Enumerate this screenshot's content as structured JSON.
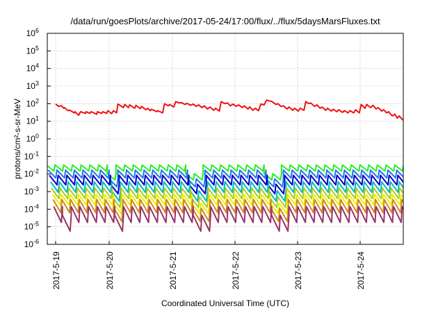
{
  "chart_data": {
    "type": "line",
    "title": "/data/run/goesPlots/archive/2017-05-24/17:00/flux/../flux/5daysMarsFluxes.txt",
    "xlabel": "Coordinated Universal Time (UTC)",
    "ylabel": "protons/cm²-s-sr-MeV",
    "y_scale": "log",
    "ylim": [
      1e-06,
      1000000.0
    ],
    "y_ticks": [
      {
        "value": 1e-06,
        "base": "10",
        "exp": "-6"
      },
      {
        "value": 1e-05,
        "base": "10",
        "exp": "-5"
      },
      {
        "value": 0.0001,
        "base": "10",
        "exp": "-4"
      },
      {
        "value": 0.001,
        "base": "10",
        "exp": "-3"
      },
      {
        "value": 0.01,
        "base": "10",
        "exp": "-2"
      },
      {
        "value": 0.1,
        "base": "10",
        "exp": "-1"
      },
      {
        "value": 1,
        "base": "10",
        "exp": "0"
      },
      {
        "value": 10,
        "base": "10",
        "exp": "1"
      },
      {
        "value": 100,
        "base": "10",
        "exp": "2"
      },
      {
        "value": 1000,
        "base": "10",
        "exp": "3"
      },
      {
        "value": 10000,
        "base": "10",
        "exp": "4"
      },
      {
        "value": 100000,
        "base": "10",
        "exp": "5"
      },
      {
        "value": 1000000,
        "base": "10",
        "exp": "6"
      }
    ],
    "x_ticks": [
      "2017-5-19",
      "2017-5-20",
      "2017-5-21",
      "2017-5-22",
      "2017-5-23",
      "2017-5-24"
    ],
    "x_range_days": [
      0,
      5.7
    ],
    "grid": true,
    "legend": "none",
    "series": [
      {
        "color": "#ee1111",
        "x": [
          0.0,
          0.05,
          0.09,
          0.13,
          0.14,
          0.2,
          0.23,
          0.3,
          0.31,
          0.37,
          0.4,
          0.48,
          0.49,
          0.55,
          0.57,
          0.66,
          0.67,
          0.74,
          0.76,
          0.82,
          0.84,
          0.9,
          0.93,
          0.98,
          1.0,
          1.09,
          1.11,
          1.17,
          1.19,
          1.27,
          1.29,
          1.36,
          1.38,
          1.45,
          1.48,
          1.52,
          1.54,
          1.63,
          1.64,
          1.72,
          1.75,
          1.81,
          1.83,
          1.9,
          1.93,
          1.99,
          2.02,
          2.08,
          2.11,
          2.17,
          2.21,
          2.26,
          2.3,
          2.35,
          2.39,
          2.44,
          2.48,
          2.54,
          2.57,
          2.63,
          2.66,
          2.72,
          2.76,
          2.81,
          2.85,
          2.9,
          2.94,
          3.0,
          3.03,
          3.09,
          3.12,
          3.17,
          3.21,
          3.26,
          3.3,
          3.35,
          3.39,
          3.44,
          3.48,
          3.54,
          3.57,
          3.62,
          3.66,
          3.72,
          3.75,
          3.81,
          3.84,
          3.9,
          3.93,
          3.99,
          4.02,
          4.07,
          4.1,
          4.16,
          4.2,
          4.25,
          4.28,
          4.34,
          4.37,
          4.43,
          4.46,
          4.52,
          4.55,
          4.61,
          4.64,
          4.7,
          4.73,
          4.79,
          4.82,
          4.88,
          4.91,
          4.97,
          5.0,
          5.06,
          5.1,
          5.15,
          5.18,
          5.24,
          5.27,
          5.32,
          5.35,
          5.41,
          5.45,
          5.49,
          5.52,
          5.58,
          5.6,
          5.66,
          5.7
        ],
        "values": [
          95.0,
          70.0,
          78.0,
          55.0,
          60.0,
          40.0,
          42.0,
          30.0,
          35.0,
          22.0,
          35.0,
          28.0,
          35.0,
          28.0,
          35.0,
          25.0,
          35.0,
          28.0,
          35.0,
          28.0,
          40.0,
          27.0,
          40.0,
          30.0,
          95.0,
          60.0,
          90.0,
          60.0,
          85.0,
          55.0,
          80.0,
          52.0,
          70.0,
          45.0,
          55.0,
          40.0,
          48.0,
          35.0,
          40.0,
          30.0,
          100.0,
          75.0,
          90.0,
          65.0,
          130.0,
          110.0,
          115.0,
          90.0,
          105.0,
          80.0,
          95.0,
          70.0,
          85.0,
          60.0,
          75.0,
          50.0,
          65.0,
          42.0,
          55.0,
          38.0,
          130.0,
          100.0,
          110.0,
          75.0,
          95.0,
          70.0,
          85.0,
          60.0,
          75.0,
          50.0,
          65.0,
          42.0,
          55.0,
          40.0,
          95.0,
          85.0,
          160.0,
          140.0,
          130.0,
          90.0,
          100.0,
          70.0,
          75.0,
          50.0,
          65.0,
          42.0,
          55.0,
          38.0,
          55.0,
          42.0,
          130.0,
          100.0,
          110.0,
          70.0,
          85.0,
          55.0,
          65.0,
          42.0,
          55.0,
          38.0,
          48.0,
          35.0,
          45.0,
          32.0,
          40.0,
          30.0,
          40.0,
          30.0,
          45.0,
          30.0,
          90.0,
          55.0,
          90.0,
          60.0,
          80.0,
          50.0,
          60.0,
          38.0,
          45.0,
          30.0,
          35.0,
          20.0,
          25.0,
          15.0,
          20.0,
          12.0,
          15.0,
          10.0,
          20.0
        ]
      },
      {
        "color": "#22ee22",
        "level": 0.022,
        "amplitude_decades": 0.35,
        "period_days": 0.14,
        "phase": 0.0,
        "dip_days": [
          0.85,
          2.15,
          3.4
        ]
      },
      {
        "color": "#2277ee",
        "level": 0.01,
        "amplitude_decades": 0.45,
        "period_days": 0.14,
        "phase": 0.03,
        "dip_days": [
          0.85,
          2.15,
          3.4
        ]
      },
      {
        "color": "#0000cc",
        "level": 0.0045,
        "amplitude_decades": 0.55,
        "period_days": 0.14,
        "phase": 0.05,
        "dip_days": [
          0.85,
          2.15,
          3.4
        ]
      },
      {
        "color": "#00bbbb",
        "level": 0.0018,
        "amplitude_decades": 0.6,
        "period_days": 0.14,
        "phase": 0.07,
        "dip_days": [
          0.85,
          2.15,
          3.4
        ]
      },
      {
        "color": "#aacc22",
        "level": 0.0008,
        "amplitude_decades": 0.6,
        "period_days": 0.14,
        "phase": 0.08,
        "dip_days": [
          0.85,
          2.15,
          3.4
        ]
      },
      {
        "color": "#eeee00",
        "level": 0.00035,
        "amplitude_decades": 0.6,
        "period_days": 0.14,
        "phase": 0.1,
        "dip_days": [
          0.85,
          2.15,
          3.4
        ]
      },
      {
        "color": "#cc8822",
        "level": 0.00015,
        "amplitude_decades": 0.75,
        "period_days": 0.14,
        "phase": 0.11,
        "dip_days": [
          0.85,
          2.15,
          3.4
        ]
      },
      {
        "color": "#993366",
        "level": 5e-05,
        "amplitude_decades": 0.9,
        "period_days": 0.14,
        "phase": 0.12,
        "dip_days": [
          0.0,
          0.85,
          2.15,
          3.4
        ]
      }
    ]
  }
}
